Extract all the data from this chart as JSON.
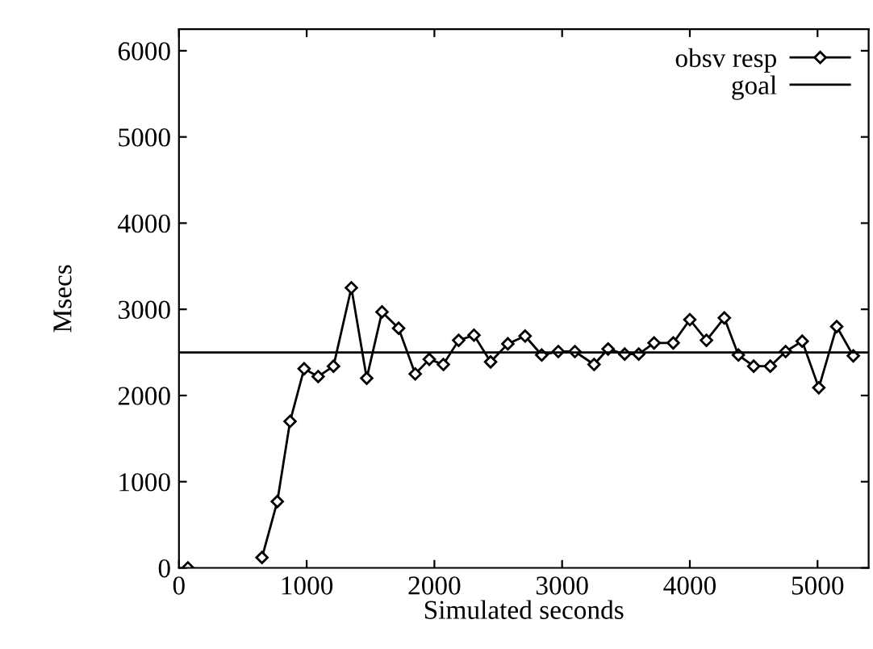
{
  "chart_data": {
    "type": "line",
    "xlabel": "Simulated seconds",
    "ylabel": "Msecs",
    "xlim": [
      0,
      5400
    ],
    "ylim": [
      0,
      6250
    ],
    "xticks": [
      0,
      1000,
      2000,
      3000,
      4000,
      5000
    ],
    "yticks": [
      0,
      1000,
      2000,
      3000,
      4000,
      5000,
      6000
    ],
    "marker": "diamond",
    "legend": "top right",
    "grid": false,
    "series": [
      {
        "name": "obsv resp",
        "color": "#000000",
        "x": [
          70,
          145,
          560,
          650,
          770,
          870,
          980,
          1090,
          1210,
          1350,
          1470,
          1590,
          1720,
          1850,
          1960,
          2070,
          2190,
          2310,
          2440,
          2575,
          2710,
          2840,
          2970,
          3100,
          3250,
          3360,
          3490,
          3600,
          3720,
          3870,
          4000,
          4130,
          4270,
          4380,
          4500,
          4630,
          4750,
          4880,
          5010,
          5150,
          5280
        ],
        "values": [
          0,
          null,
          null,
          120,
          770,
          1700,
          2310,
          2220,
          2340,
          3250,
          2200,
          2970,
          2780,
          2250,
          2420,
          2360,
          2640,
          2700,
          2390,
          2600,
          2690,
          2470,
          2510,
          2510,
          2360,
          2540,
          2480,
          2480,
          2610,
          2610,
          2880,
          2640,
          2900,
          2470,
          2340,
          2340,
          2510,
          2630,
          2090,
          2800,
          2460
        ]
      },
      {
        "name": "goal",
        "color": "#000000",
        "type": "line",
        "marker": "none",
        "x": [
          0,
          5400
        ],
        "values": [
          2500,
          2500
        ]
      }
    ]
  }
}
